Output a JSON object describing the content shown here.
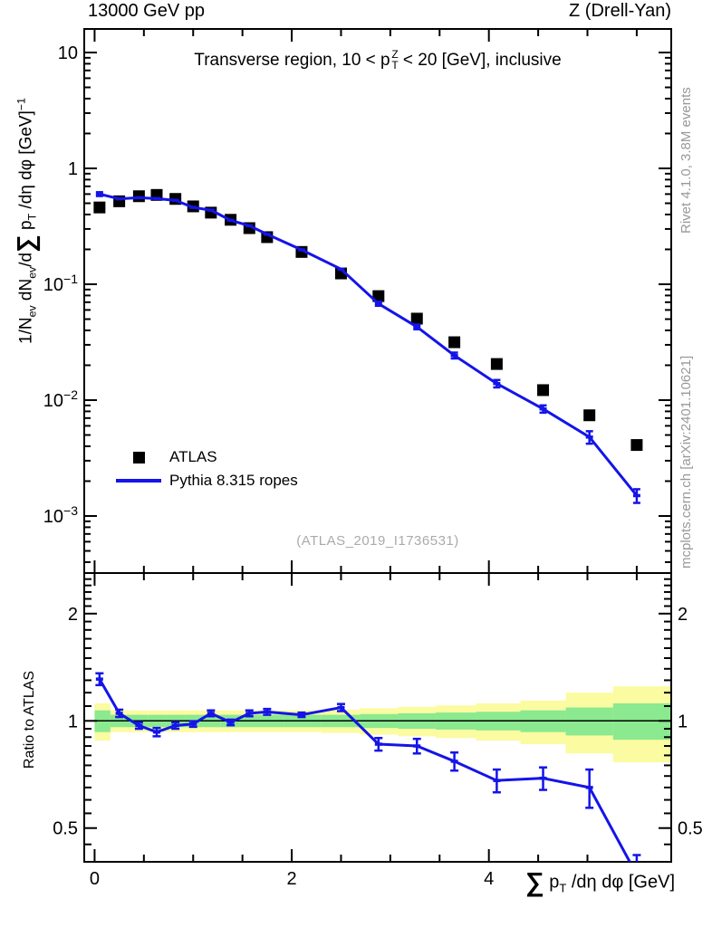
{
  "header": {
    "left": "13000 GeV pp",
    "right": "Z (Drell-Yan)"
  },
  "panel_title": {
    "pre": "Transverse region, 10 < p",
    "sup": "Z",
    "sub": "T",
    "post": " < 20 [GeV], inclusive"
  },
  "watermark": "(ATLAS_2019_I1736531)",
  "side_notes": {
    "top_right": "Rivet 4.1.0,  3.8M events",
    "bottom_right": "mcplots.cern.ch [arXiv:2401.10621]"
  },
  "legend": [
    {
      "label": "ATLAS",
      "marker": "square",
      "color": "#000000"
    },
    {
      "label": "Pythia 8.315 ropes",
      "marker": "line",
      "color": "#1414e8"
    }
  ],
  "axis_labels": {
    "y_main": {
      "pre": "1/N",
      "sub1": "ev",
      "m1": " dN",
      "sub2": "ev",
      "m2": "/d",
      "sum": "∑",
      "m3": " p",
      "sub3": "T",
      "post": " /dη dφ  [GeV]",
      "sup": "−1"
    },
    "y_ratio": "Ratio to ATLAS",
    "x": {
      "sum": "∑",
      "m1": " p",
      "sub": "T",
      "post": " /dη dφ [GeV]"
    }
  },
  "chart_data": {
    "type": "line",
    "title": "Transverse region, 10 < pT(Z) < 20 [GeV], inclusive",
    "xlabel": "sum pT /deta dphi [GeV]",
    "ylabel": "1/Nev dNev/d sum pT /deta dphi [GeV]^-1",
    "ratio_label": "Ratio to ATLAS",
    "x_range": [
      -0.105,
      5.85
    ],
    "main_y_range": [
      0.000322,
      15.96
    ],
    "ratio_y_range": [
      0.402,
      2.6
    ],
    "x_ticks_major": [
      0,
      2,
      4
    ],
    "x_tick_labels": [
      "0",
      "2",
      "4"
    ],
    "x_ticks_minor": [
      0.5,
      1,
      1.5,
      2.5,
      3,
      3.5,
      4.5,
      5,
      5.5
    ],
    "main_y_ticks": [
      [
        10,
        "10",
        ""
      ],
      [
        1,
        "1",
        ""
      ],
      [
        0.1,
        "10",
        "−1"
      ],
      [
        0.01,
        "10",
        "−2"
      ],
      [
        0.001,
        "10",
        "−3"
      ]
    ],
    "ratio_y_ticks": [
      [
        2,
        "2"
      ],
      [
        1,
        "1"
      ],
      [
        0.5,
        "0.5"
      ]
    ],
    "ratio_y_minor": [
      0.45,
      0.55,
      0.6,
      0.65,
      0.7,
      0.75,
      0.8,
      0.85,
      0.9,
      0.95,
      1.1,
      1.2,
      1.3,
      1.4,
      1.5,
      1.6,
      1.7,
      1.8,
      1.9,
      2.1,
      2.2,
      2.3,
      2.4,
      2.5
    ],
    "x": [
      0.05,
      0.25,
      0.45,
      0.63,
      0.82,
      1.0,
      1.18,
      1.38,
      1.57,
      1.75,
      2.1,
      2.5,
      2.88,
      3.27,
      3.65,
      4.08,
      4.55,
      5.02,
      5.5
    ],
    "series": [
      {
        "name": "ATLAS",
        "style": "squares",
        "color": "#000000",
        "values": [
          0.46,
          0.52,
          0.575,
          0.59,
          0.545,
          0.47,
          0.415,
          0.36,
          0.305,
          0.255,
          0.19,
          0.124,
          0.079,
          0.0505,
          0.0316,
          0.0205,
          0.0122,
          0.0074,
          0.0041
        ]
      },
      {
        "name": "Pythia 8.315 ropes",
        "style": "line",
        "color": "#1414e8",
        "values": [
          0.6,
          0.546,
          0.558,
          0.549,
          0.529,
          0.46,
          0.436,
          0.356,
          0.32,
          0.27,
          0.198,
          0.135,
          0.068,
          0.0429,
          0.0243,
          0.0139,
          0.0084,
          0.0048,
          0.0015
        ]
      }
    ],
    "ratio": {
      "reference": "ATLAS",
      "values": [
        1.31,
        1.05,
        0.97,
        0.93,
        0.97,
        0.98,
        1.05,
        0.99,
        1.05,
        1.06,
        1.04,
        1.09,
        0.86,
        0.85,
        0.77,
        0.68,
        0.69,
        0.65,
        0.37
      ],
      "errors": [
        0.05,
        0.025,
        0.02,
        0.025,
        0.02,
        0.018,
        0.02,
        0.018,
        0.02,
        0.02,
        0.015,
        0.025,
        0.035,
        0.04,
        0.045,
        0.05,
        0.05,
        0.08,
        0.05
      ]
    },
    "uncertainty_bands": {
      "edges": [
        0.0,
        0.16,
        0.35,
        0.54,
        0.73,
        0.91,
        1.09,
        1.28,
        1.47,
        1.66,
        1.92,
        2.3,
        2.69,
        3.08,
        3.46,
        3.87,
        4.32,
        4.78,
        5.26,
        5.85
      ],
      "green": {
        "color": "#8be98f",
        "hi": [
          1.07,
          1.04,
          1.04,
          1.04,
          1.04,
          1.04,
          1.04,
          1.04,
          1.04,
          1.04,
          1.04,
          1.04,
          1.045,
          1.05,
          1.055,
          1.06,
          1.07,
          1.09,
          1.12
        ],
        "lo": [
          0.93,
          0.96,
          0.96,
          0.96,
          0.96,
          0.96,
          0.96,
          0.96,
          0.96,
          0.96,
          0.96,
          0.96,
          0.955,
          0.95,
          0.945,
          0.94,
          0.93,
          0.91,
          0.885
        ]
      },
      "yellow": {
        "color": "#fbfba1",
        "hi": [
          1.12,
          1.07,
          1.07,
          1.07,
          1.07,
          1.07,
          1.07,
          1.07,
          1.07,
          1.07,
          1.07,
          1.075,
          1.085,
          1.095,
          1.105,
          1.12,
          1.14,
          1.2,
          1.25
        ],
        "lo": [
          0.88,
          0.93,
          0.93,
          0.93,
          0.93,
          0.93,
          0.93,
          0.93,
          0.93,
          0.93,
          0.93,
          0.925,
          0.915,
          0.905,
          0.895,
          0.88,
          0.86,
          0.81,
          0.765
        ]
      }
    }
  }
}
